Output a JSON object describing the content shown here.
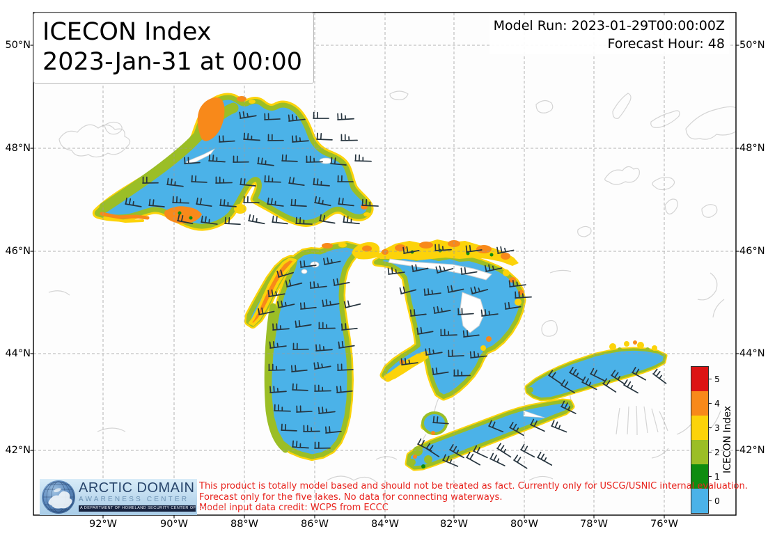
{
  "title": {
    "line1": "ICECON Index",
    "line2": "2023-Jan-31 at 00:00"
  },
  "model_info": {
    "model_run": "Model Run: 2023-01-29T00:00:00Z",
    "forecast_hour": "Forecast Hour: 48"
  },
  "axes": {
    "lat_labels": [
      "50°N",
      "48°N",
      "46°N",
      "44°N",
      "42°N"
    ],
    "lon_labels": [
      "92°W",
      "90°W",
      "88°W",
      "86°W",
      "84°W",
      "82°W",
      "80°W",
      "78°W",
      "76°W"
    ]
  },
  "colorbar": {
    "label": "ICECON Index",
    "segments": [
      {
        "label": "5",
        "color": "#DC1414"
      },
      {
        "label": "4",
        "color": "#F8891A"
      },
      {
        "label": "3",
        "color": "#FCD30A"
      },
      {
        "label": "2",
        "color": "#9BBE26"
      },
      {
        "label": "1",
        "color": "#0F8C10"
      },
      {
        "label": "0",
        "color": "#4BB2E8"
      }
    ]
  },
  "map_colors": {
    "lake_ice_free": "#4BB2E8",
    "ice_fringe_low": "#9BBE26",
    "ice_fringe_mid": "#FCD30A",
    "ice_fringe_high": "#F8891A",
    "wind_barb": "#26343E",
    "gridline": "#9C9C9C",
    "coastline": "#D4D4D4"
  },
  "disclaimer": {
    "line1": "This product is totally model based and should not be treated as fact. Currently only for USCG/USNIC internal evaluation.",
    "line2": "Forecast only for the five lakes. No data for connecting waterways.",
    "line3": "Model input data credit: WCPS from ECCC"
  },
  "logo": {
    "line1": "ARCTIC DOMAIN",
    "line2": "AWARENESS CENTER",
    "line3": "A DEPARTMENT OF HOMELAND SECURITY CENTER OF EXCELLENCE"
  }
}
